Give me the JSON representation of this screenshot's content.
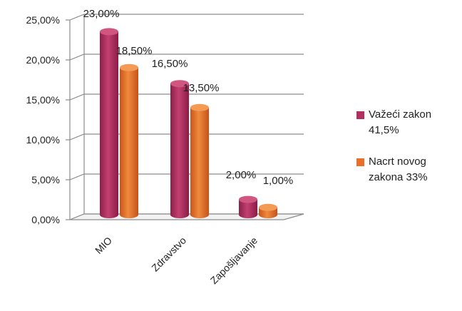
{
  "chart_data": {
    "type": "bar",
    "categories": [
      "MIO",
      "Zdravstvo",
      "Zapošljavanje"
    ],
    "series": [
      {
        "name": "Važeći zakon 41,5%",
        "values": [
          23.0,
          16.5,
          2.0
        ],
        "data_labels": [
          "23,00%",
          "16,50%",
          "2,00%"
        ],
        "color": "#B03060"
      },
      {
        "name": "Nacrt novog zakona 33%",
        "values": [
          18.5,
          13.5,
          1.0
        ],
        "data_labels": [
          "18,50%",
          "13,50%",
          "1,00%"
        ],
        "color": "#E8702A"
      }
    ],
    "yticks": [
      "0,00%",
      "5,00%",
      "10,00%",
      "15,00%",
      "20,00%",
      "25,00%"
    ],
    "ylim": [
      0,
      25
    ],
    "grid": true,
    "legend_position": "right"
  },
  "legend": {
    "item1": "Važeći zakon 41,5%",
    "item2": "Nacrt novog zakona 33%"
  }
}
